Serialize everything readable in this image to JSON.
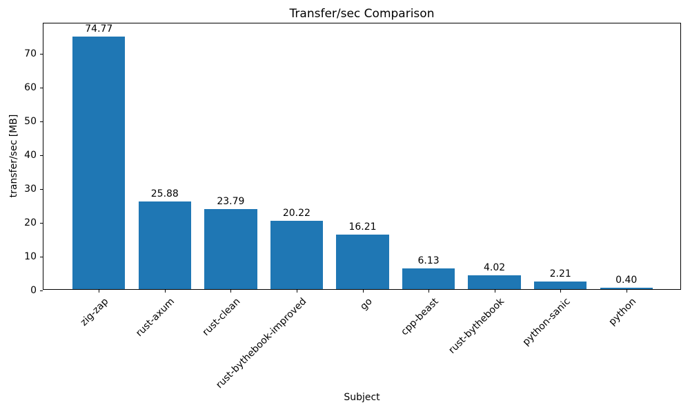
{
  "chart_data": {
    "type": "bar",
    "title": "Transfer/sec Comparison",
    "xlabel": "Subject",
    "ylabel": "transfer/sec [MB]",
    "categories": [
      "zig-zap",
      "rust-axum",
      "rust-clean",
      "rust-bythebook-improved",
      "go",
      "cpp-beast",
      "rust-bythebook",
      "python-sanic",
      "python"
    ],
    "values": [
      74.77,
      25.88,
      23.79,
      20.22,
      16.21,
      6.13,
      4.02,
      2.21,
      0.4
    ],
    "value_labels": [
      "74.77",
      "25.88",
      "23.79",
      "20.22",
      "16.21",
      "6.13",
      "4.02",
      "2.21",
      "0.40"
    ],
    "yticks": [
      "0",
      "10",
      "20",
      "30",
      "40",
      "50",
      "60",
      "70"
    ],
    "ylim": [
      0,
      79
    ],
    "x_tick_rotation_deg": 45,
    "bar_color": "#1f77b4",
    "axis_color": "#000000",
    "text_color": "#000000",
    "background_color": "#ffffff",
    "grid": false,
    "legend_position": "none"
  }
}
